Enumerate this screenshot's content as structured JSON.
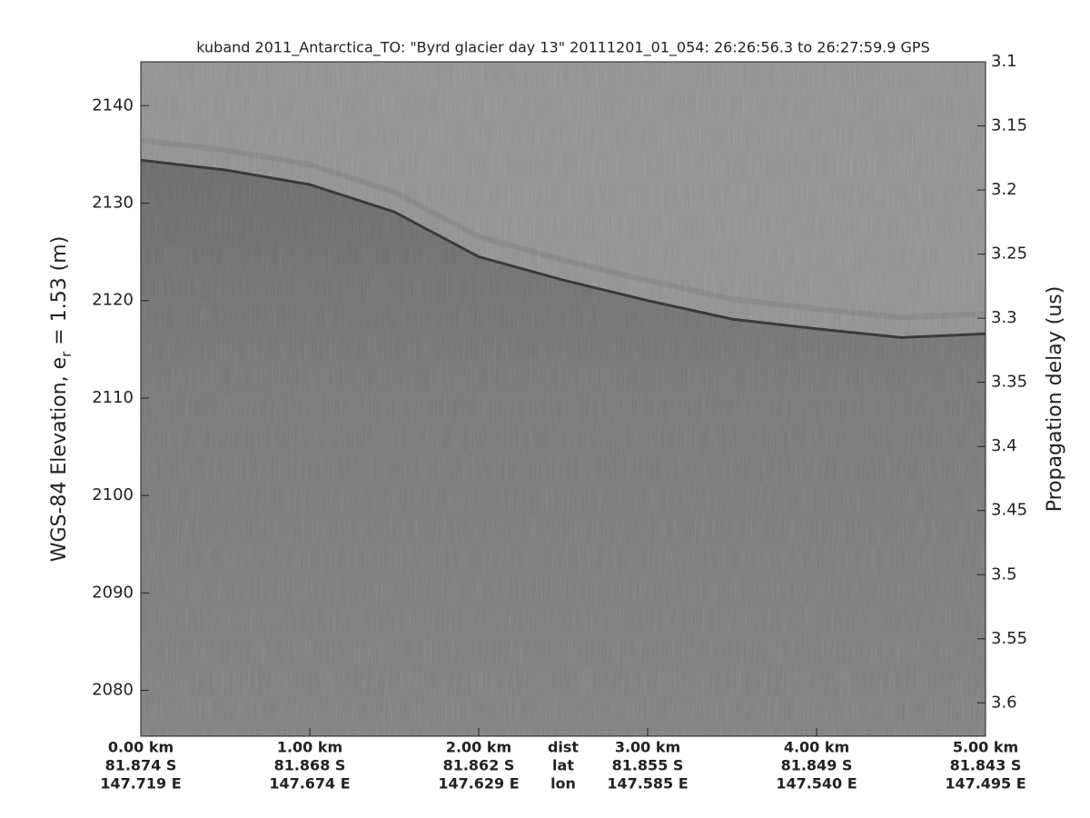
{
  "chart_data": {
    "type": "echogram",
    "title": "kuband 2011_Antarctica_TO: \"Byrd glacier day 13\"  20111201_01_054: 26:26:56.3 to 26:27:59.9 GPS",
    "y_label_parts": [
      "WGS-84 Elevation, e",
      "r",
      " = 1.53 (m)"
    ],
    "y2_label": "Propagation delay (us)",
    "xlim": [
      0,
      5
    ],
    "xticks": [
      {
        "value": 0,
        "label": "0.00 km"
      },
      {
        "value": 1,
        "label": "1.00 km"
      },
      {
        "value": 2,
        "label": "2.00 km"
      },
      {
        "value": 3,
        "label": "3.00 km"
      },
      {
        "value": 4,
        "label": "4.00 km"
      },
      {
        "value": 5,
        "label": "5.00 km"
      }
    ],
    "lat_labels": [
      "81.874 S",
      "81.868 S",
      "81.862 S",
      "81.855 S",
      "81.849 S",
      "81.843 S"
    ],
    "lon_labels": [
      "147.719 E",
      "147.674 E",
      "147.629 E",
      "147.585 E",
      "147.540 E",
      "147.495 E"
    ],
    "row_labels": {
      "x": 2.5,
      "labels": [
        "dist",
        "lat",
        "lon"
      ]
    },
    "ylim": [
      2075.3,
      2144.5
    ],
    "yticks": [
      2080,
      2090,
      2100,
      2110,
      2120,
      2130,
      2140
    ],
    "y2lim": [
      3.626,
      3.1
    ],
    "y2ticks": [
      3.1,
      3.15,
      3.2,
      3.25,
      3.3,
      3.35,
      3.4,
      3.45,
      3.5,
      3.55,
      3.6
    ],
    "surface": {
      "color": "#3a3a3a",
      "x": [
        0,
        0.5,
        1,
        1.5,
        2,
        2.5,
        3,
        3.5,
        4,
        4.5,
        5
      ],
      "values": [
        2134.4,
        2133.4,
        2131.9,
        2129.1,
        2124.5,
        2122.1,
        2120.0,
        2118.1,
        2117.1,
        2116.2,
        2116.6
      ]
    }
  }
}
